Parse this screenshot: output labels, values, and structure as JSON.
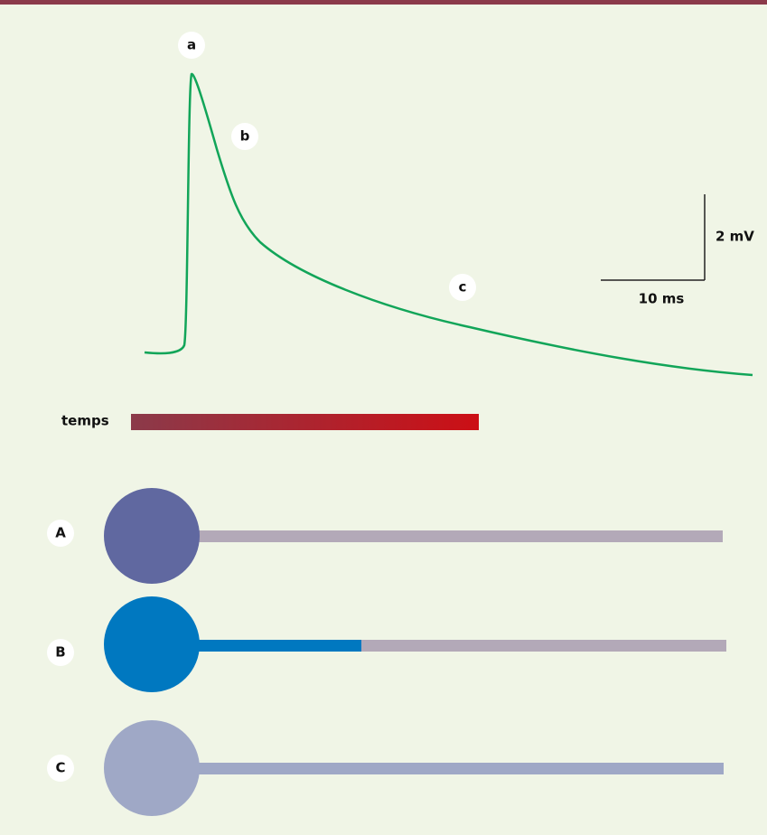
{
  "trace_labels": [
    "a",
    "b",
    "c"
  ],
  "scale": {
    "voltage": "2 mV",
    "time": "10 ms"
  },
  "time_bar": {
    "label": "temps"
  },
  "neurons": [
    {
      "label": "A"
    },
    {
      "label": "B"
    },
    {
      "label": "C"
    }
  ]
}
